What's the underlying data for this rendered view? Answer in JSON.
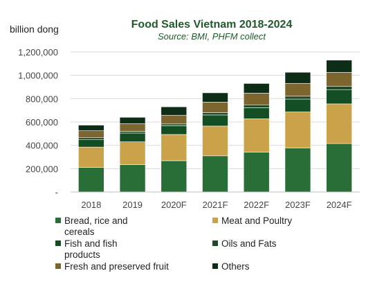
{
  "chart_data": {
    "type": "bar",
    "stacked": true,
    "title": "Food Sales Vietnam 2018-2024",
    "subtitle": "Source: BMI, PHFM collect",
    "ylabel": "billion dong",
    "xlabel": "",
    "ylim": [
      0,
      1200000
    ],
    "yticks": [
      0,
      200000,
      400000,
      600000,
      800000,
      1000000,
      1200000
    ],
    "ytick_labels": [
      "-",
      "200,000",
      "400,000",
      "600,000",
      "800,000",
      "1,000,000",
      "1,200,000"
    ],
    "grid": true,
    "legend_position": "bottom",
    "categories": [
      "2018",
      "2019",
      "2020F",
      "2021F",
      "2022F",
      "2023F",
      "2024F"
    ],
    "series": [
      {
        "name": "Bread, rice and cereals",
        "color": "#2a6e37",
        "values": [
          210000,
          235000,
          268000,
          310000,
          342000,
          378000,
          415000
        ]
      },
      {
        "name": "Meat and Poultry",
        "color": "#c9a24a",
        "values": [
          175000,
          195000,
          225000,
          255000,
          285000,
          308000,
          340000
        ]
      },
      {
        "name": "Fish and fish products",
        "color": "#134d24",
        "values": [
          65000,
          75000,
          75000,
          95000,
          95000,
          110000,
          120000
        ]
      },
      {
        "name": "Oils and Fats",
        "color": "#1c4a2a",
        "values": [
          15000,
          15000,
          15000,
          20000,
          25000,
          25000,
          30000
        ]
      },
      {
        "name": "Fresh and preserved fruit",
        "color": "#7d6530",
        "values": [
          60000,
          65000,
          75000,
          90000,
          100000,
          110000,
          120000
        ]
      },
      {
        "name": "Others",
        "color": "#0e2d17",
        "values": [
          48000,
          55000,
          72000,
          80000,
          83000,
          95000,
          105000
        ]
      }
    ]
  }
}
